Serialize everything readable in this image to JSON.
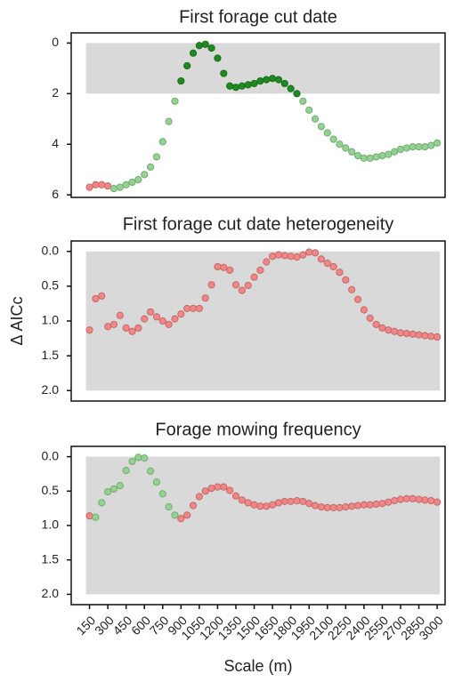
{
  "chart_data": [
    {
      "type": "scatter",
      "title": "First forage cut date",
      "x": [
        150,
        200,
        250,
        300,
        350,
        400,
        450,
        500,
        550,
        600,
        650,
        700,
        750,
        800,
        850,
        900,
        950,
        1000,
        1050,
        1100,
        1150,
        1200,
        1250,
        1300,
        1350,
        1400,
        1450,
        1500,
        1550,
        1600,
        1650,
        1700,
        1750,
        1800,
        1850,
        1900,
        1950,
        2000,
        2050,
        2100,
        2150,
        2200,
        2250,
        2300,
        2350,
        2400,
        2450,
        2500,
        2550,
        2600,
        2650,
        2700,
        2750,
        2800,
        2850,
        2900,
        2950,
        3000
      ],
      "values": [
        5.7,
        5.6,
        5.6,
        5.65,
        5.75,
        5.7,
        5.6,
        5.5,
        5.4,
        5.2,
        4.9,
        4.5,
        3.9,
        3.1,
        2.3,
        1.5,
        0.9,
        0.4,
        0.1,
        0.05,
        0.2,
        0.6,
        1.2,
        1.7,
        1.75,
        1.7,
        1.65,
        1.6,
        1.5,
        1.45,
        1.4,
        1.45,
        1.6,
        1.8,
        2.0,
        2.3,
        2.65,
        3.0,
        3.3,
        3.55,
        3.8,
        4.0,
        4.15,
        4.3,
        4.45,
        4.55,
        4.55,
        4.5,
        4.45,
        4.4,
        4.3,
        4.2,
        4.15,
        4.1,
        4.1,
        4.1,
        4.05,
        3.95
      ],
      "point_colors": [
        "red",
        "red",
        "red",
        "red",
        "light",
        "light",
        "light",
        "light",
        "light",
        "light",
        "light",
        "light",
        "light",
        "light",
        "light",
        "dark",
        "dark",
        "dark",
        "dark",
        "dark",
        "dark",
        "dark",
        "dark",
        "dark",
        "dark",
        "dark",
        "dark",
        "dark",
        "dark",
        "dark",
        "dark",
        "dark",
        "dark",
        "dark",
        "dark",
        "light",
        "light",
        "light",
        "light",
        "light",
        "light",
        "light",
        "light",
        "light",
        "light",
        "light",
        "light",
        "light",
        "light",
        "light",
        "light",
        "light",
        "light",
        "light",
        "light",
        "light",
        "light",
        "light"
      ],
      "palette": {
        "red": "#f28585",
        "light": "#92d392",
        "dark": "#1f8a1f"
      },
      "xlim": [
        0,
        3065
      ],
      "ylim": [
        6.1,
        -0.4
      ],
      "yticks": [
        0,
        2,
        4,
        6
      ],
      "shaded_band": [
        0,
        2
      ]
    },
    {
      "type": "scatter",
      "title": "First forage cut date heterogeneity",
      "ylabel": "Δ AICc",
      "x": [
        150,
        200,
        250,
        300,
        350,
        400,
        450,
        500,
        550,
        600,
        650,
        700,
        750,
        800,
        850,
        900,
        950,
        1000,
        1050,
        1100,
        1150,
        1200,
        1250,
        1300,
        1350,
        1400,
        1450,
        1500,
        1550,
        1600,
        1650,
        1700,
        1750,
        1800,
        1850,
        1900,
        1950,
        2000,
        2050,
        2100,
        2150,
        2200,
        2250,
        2300,
        2350,
        2400,
        2450,
        2500,
        2550,
        2600,
        2650,
        2700,
        2750,
        2800,
        2850,
        2900,
        2950,
        3000
      ],
      "values": [
        1.13,
        0.68,
        0.64,
        1.08,
        1.05,
        0.92,
        1.1,
        1.15,
        1.1,
        0.97,
        0.87,
        0.94,
        1.0,
        1.05,
        0.97,
        0.9,
        0.82,
        0.82,
        0.82,
        0.67,
        0.48,
        0.22,
        0.23,
        0.27,
        0.48,
        0.56,
        0.49,
        0.37,
        0.27,
        0.15,
        0.07,
        0.05,
        0.06,
        0.07,
        0.08,
        0.05,
        0.01,
        0.02,
        0.11,
        0.17,
        0.22,
        0.3,
        0.41,
        0.55,
        0.69,
        0.84,
        0.96,
        1.05,
        1.1,
        1.13,
        1.15,
        1.17,
        1.18,
        1.19,
        1.2,
        1.21,
        1.22,
        1.23
      ],
      "point_colors": [
        "red",
        "red",
        "red",
        "red",
        "red",
        "red",
        "red",
        "red",
        "red",
        "red",
        "red",
        "red",
        "red",
        "red",
        "red",
        "red",
        "red",
        "red",
        "red",
        "red",
        "red",
        "red",
        "red",
        "red",
        "red",
        "red",
        "red",
        "red",
        "red",
        "red",
        "red",
        "red",
        "red",
        "red",
        "red",
        "red",
        "red",
        "red",
        "red",
        "red",
        "red",
        "red",
        "red",
        "red",
        "red",
        "red",
        "red",
        "red",
        "red",
        "red",
        "red",
        "red",
        "red",
        "red",
        "red",
        "red",
        "red",
        "red"
      ],
      "palette": {
        "red": "#f28585"
      },
      "xlim": [
        0,
        3065
      ],
      "ylim": [
        2.15,
        -0.15
      ],
      "yticks": [
        {
          "value": 0,
          "label": "0.0"
        },
        0.5,
        {
          "value": 1,
          "label": "1.0"
        },
        1.5,
        {
          "value": 2,
          "label": "2.0"
        }
      ],
      "shaded_band": [
        0,
        2
      ]
    },
    {
      "type": "scatter",
      "title": "Forage mowing frequency",
      "xlabel": "Scale (m)",
      "x": [
        150,
        200,
        250,
        300,
        350,
        400,
        450,
        500,
        550,
        600,
        650,
        700,
        750,
        800,
        850,
        900,
        950,
        1000,
        1050,
        1100,
        1150,
        1200,
        1250,
        1300,
        1350,
        1400,
        1450,
        1500,
        1550,
        1600,
        1650,
        1700,
        1750,
        1800,
        1850,
        1900,
        1950,
        2000,
        2050,
        2100,
        2150,
        2200,
        2250,
        2300,
        2350,
        2400,
        2450,
        2500,
        2550,
        2600,
        2650,
        2700,
        2750,
        2800,
        2850,
        2900,
        2950,
        3000
      ],
      "values": [
        0.86,
        0.88,
        0.67,
        0.51,
        0.47,
        0.42,
        0.2,
        0.07,
        0.01,
        0.02,
        0.21,
        0.37,
        0.54,
        0.73,
        0.85,
        0.9,
        0.85,
        0.71,
        0.58,
        0.5,
        0.46,
        0.44,
        0.44,
        0.49,
        0.57,
        0.63,
        0.67,
        0.7,
        0.72,
        0.72,
        0.7,
        0.67,
        0.65,
        0.65,
        0.64,
        0.65,
        0.68,
        0.71,
        0.73,
        0.74,
        0.74,
        0.74,
        0.73,
        0.72,
        0.71,
        0.7,
        0.7,
        0.69,
        0.68,
        0.66,
        0.64,
        0.62,
        0.61,
        0.61,
        0.62,
        0.63,
        0.64,
        0.66
      ],
      "point_colors": [
        "red",
        "light",
        "light",
        "light",
        "light",
        "light",
        "light",
        "light",
        "light",
        "light",
        "light",
        "light",
        "light",
        "light",
        "light",
        "red",
        "red",
        "red",
        "red",
        "red",
        "red",
        "red",
        "red",
        "red",
        "red",
        "red",
        "red",
        "red",
        "red",
        "red",
        "red",
        "red",
        "red",
        "red",
        "red",
        "red",
        "red",
        "red",
        "red",
        "red",
        "red",
        "red",
        "red",
        "red",
        "red",
        "red",
        "red",
        "red",
        "red",
        "red",
        "red",
        "red",
        "red",
        "red",
        "red",
        "red",
        "red",
        "red"
      ],
      "palette": {
        "red": "#f28585",
        "light": "#92d392"
      },
      "xlim": [
        0,
        3065
      ],
      "ylim": [
        2.15,
        -0.15
      ],
      "yticks": [
        {
          "value": 0,
          "label": "0.0"
        },
        0.5,
        {
          "value": 1,
          "label": "1.0"
        },
        1.5,
        {
          "value": 2,
          "label": "2.0"
        }
      ],
      "shaded_band": [
        0,
        2
      ],
      "xticks": [
        150,
        300,
        450,
        600,
        750,
        900,
        1050,
        1200,
        1350,
        1500,
        1650,
        1800,
        1950,
        2100,
        2250,
        2400,
        2550,
        2700,
        2850,
        3000
      ]
    }
  ]
}
